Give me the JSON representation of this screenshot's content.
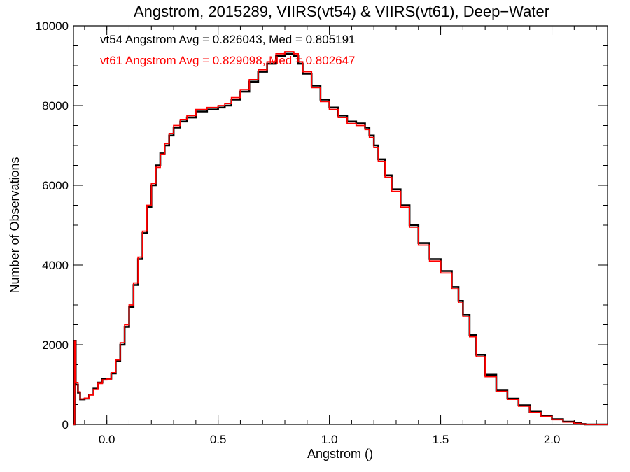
{
  "chart_data": {
    "type": "line",
    "title": "Angstrom, 2015289, VIIRS(vt54) & VIIRS(vt61), Deep−Water",
    "xlabel": "Angstrom ()",
    "ylabel": "Number of Observations",
    "xlim": [
      -0.15,
      2.25
    ],
    "ylim": [
      0,
      10000
    ],
    "x_ticks": [
      {
        "value": 0.0,
        "label": "0.0"
      },
      {
        "value": 0.5,
        "label": "0.5"
      },
      {
        "value": 1.0,
        "label": "1.0"
      },
      {
        "value": 1.5,
        "label": "1.5"
      },
      {
        "value": 2.0,
        "label": "2.0"
      }
    ],
    "y_ticks": [
      {
        "value": 0,
        "label": "0"
      },
      {
        "value": 2000,
        "label": "2000"
      },
      {
        "value": 4000,
        "label": "4000"
      },
      {
        "value": 6000,
        "label": "6000"
      },
      {
        "value": 8000,
        "label": "8000"
      },
      {
        "value": 10000,
        "label": "10000"
      }
    ],
    "x_minor_step": 0.1,
    "y_minor_step": 500,
    "grid": false,
    "histogram_step": true,
    "annotations": [
      {
        "text": "vt54 Angstrom Avg = 0.826043, Med = 0.805191",
        "color": "#000000"
      },
      {
        "text": "vt61 Angstrom Avg = 0.829098, Med = 0.802647",
        "color": "#ff0000"
      }
    ],
    "series": [
      {
        "color": "#000000",
        "points": [
          [
            -0.15,
            0
          ],
          [
            -0.145,
            2100
          ],
          [
            -0.14,
            1000
          ],
          [
            -0.13,
            800
          ],
          [
            -0.12,
            630
          ],
          [
            -0.1,
            650
          ],
          [
            -0.08,
            750
          ],
          [
            -0.06,
            900
          ],
          [
            -0.04,
            1050
          ],
          [
            -0.02,
            1150
          ],
          [
            0.0,
            1150
          ],
          [
            0.02,
            1280
          ],
          [
            0.04,
            1600
          ],
          [
            0.06,
            2000
          ],
          [
            0.08,
            2450
          ],
          [
            0.1,
            2950
          ],
          [
            0.12,
            3500
          ],
          [
            0.14,
            4150
          ],
          [
            0.16,
            4800
          ],
          [
            0.18,
            5450
          ],
          [
            0.2,
            6000
          ],
          [
            0.22,
            6500
          ],
          [
            0.24,
            6800
          ],
          [
            0.26,
            7000
          ],
          [
            0.28,
            7250
          ],
          [
            0.3,
            7450
          ],
          [
            0.33,
            7600
          ],
          [
            0.36,
            7700
          ],
          [
            0.4,
            7850
          ],
          [
            0.45,
            7900
          ],
          [
            0.5,
            7950
          ],
          [
            0.53,
            8000
          ],
          [
            0.56,
            8150
          ],
          [
            0.6,
            8350
          ],
          [
            0.64,
            8600
          ],
          [
            0.68,
            8850
          ],
          [
            0.72,
            9050
          ],
          [
            0.76,
            9250
          ],
          [
            0.8,
            9300
          ],
          [
            0.84,
            9250
          ],
          [
            0.86,
            9050
          ],
          [
            0.88,
            8800
          ],
          [
            0.92,
            8500
          ],
          [
            0.96,
            8150
          ],
          [
            1.0,
            7950
          ],
          [
            1.04,
            7750
          ],
          [
            1.08,
            7600
          ],
          [
            1.12,
            7550
          ],
          [
            1.16,
            7450
          ],
          [
            1.18,
            7250
          ],
          [
            1.2,
            7000
          ],
          [
            1.22,
            6650
          ],
          [
            1.25,
            6250
          ],
          [
            1.28,
            5900
          ],
          [
            1.32,
            5500
          ],
          [
            1.36,
            5000
          ],
          [
            1.4,
            4550
          ],
          [
            1.45,
            4150
          ],
          [
            1.5,
            3850
          ],
          [
            1.55,
            3450
          ],
          [
            1.58,
            3100
          ],
          [
            1.6,
            2750
          ],
          [
            1.63,
            2250
          ],
          [
            1.66,
            1750
          ],
          [
            1.7,
            1250
          ],
          [
            1.75,
            850
          ],
          [
            1.8,
            650
          ],
          [
            1.85,
            480
          ],
          [
            1.9,
            320
          ],
          [
            1.95,
            220
          ],
          [
            2.0,
            130
          ],
          [
            2.05,
            70
          ],
          [
            2.1,
            30
          ],
          [
            2.13,
            10
          ],
          [
            2.15,
            0
          ],
          [
            2.25,
            0
          ]
        ]
      },
      {
        "color": "#ff0000",
        "points": [
          [
            -0.15,
            0
          ],
          [
            -0.145,
            2100
          ],
          [
            -0.14,
            1050
          ],
          [
            -0.13,
            820
          ],
          [
            -0.12,
            640
          ],
          [
            -0.1,
            660
          ],
          [
            -0.08,
            740
          ],
          [
            -0.06,
            880
          ],
          [
            -0.04,
            1030
          ],
          [
            -0.02,
            1120
          ],
          [
            0.0,
            1140
          ],
          [
            0.02,
            1300
          ],
          [
            0.04,
            1620
          ],
          [
            0.06,
            2050
          ],
          [
            0.08,
            2500
          ],
          [
            0.1,
            3000
          ],
          [
            0.12,
            3550
          ],
          [
            0.14,
            4200
          ],
          [
            0.16,
            4850
          ],
          [
            0.18,
            5500
          ],
          [
            0.2,
            6050
          ],
          [
            0.22,
            6450
          ],
          [
            0.24,
            6780
          ],
          [
            0.26,
            7050
          ],
          [
            0.28,
            7300
          ],
          [
            0.3,
            7500
          ],
          [
            0.33,
            7650
          ],
          [
            0.36,
            7750
          ],
          [
            0.4,
            7900
          ],
          [
            0.45,
            7950
          ],
          [
            0.5,
            8000
          ],
          [
            0.53,
            8050
          ],
          [
            0.56,
            8200
          ],
          [
            0.6,
            8400
          ],
          [
            0.64,
            8650
          ],
          [
            0.68,
            8900
          ],
          [
            0.72,
            9100
          ],
          [
            0.76,
            9300
          ],
          [
            0.8,
            9350
          ],
          [
            0.84,
            9300
          ],
          [
            0.86,
            9100
          ],
          [
            0.88,
            8850
          ],
          [
            0.92,
            8450
          ],
          [
            0.96,
            8100
          ],
          [
            1.0,
            7900
          ],
          [
            1.04,
            7700
          ],
          [
            1.08,
            7550
          ],
          [
            1.12,
            7500
          ],
          [
            1.16,
            7400
          ],
          [
            1.18,
            7200
          ],
          [
            1.2,
            6950
          ],
          [
            1.22,
            6600
          ],
          [
            1.25,
            6200
          ],
          [
            1.28,
            5850
          ],
          [
            1.32,
            5450
          ],
          [
            1.36,
            4950
          ],
          [
            1.4,
            4500
          ],
          [
            1.45,
            4100
          ],
          [
            1.5,
            3800
          ],
          [
            1.55,
            3400
          ],
          [
            1.58,
            3050
          ],
          [
            1.6,
            2700
          ],
          [
            1.63,
            2200
          ],
          [
            1.66,
            1700
          ],
          [
            1.7,
            1200
          ],
          [
            1.75,
            830
          ],
          [
            1.8,
            630
          ],
          [
            1.85,
            460
          ],
          [
            1.9,
            300
          ],
          [
            1.95,
            200
          ],
          [
            2.0,
            120
          ],
          [
            2.05,
            60
          ],
          [
            2.1,
            25
          ],
          [
            2.13,
            8
          ],
          [
            2.15,
            0
          ],
          [
            2.25,
            0
          ]
        ]
      }
    ]
  }
}
